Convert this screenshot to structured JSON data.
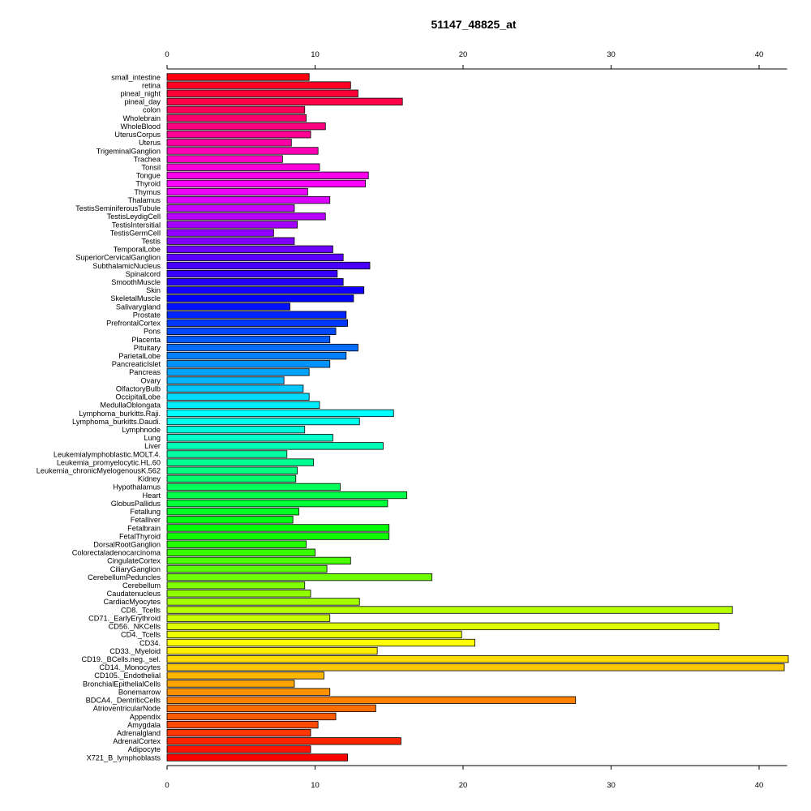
{
  "chart_data": {
    "type": "bar",
    "orientation": "horizontal",
    "title": "51147_48825_at",
    "xlabel": "",
    "ylabel": "",
    "xlim": [
      0,
      42
    ],
    "xticks": [
      0,
      10,
      20,
      30,
      40
    ],
    "axes": [
      "top",
      "bottom"
    ],
    "grid": false,
    "legend": "none",
    "color_scheme": "rainbow",
    "categories": [
      "small_intestine",
      "retina",
      "pineal_night",
      "pineal_day",
      "colon",
      "Wholebrain",
      "WholeBlood",
      "UterusCorpus",
      "Uterus",
      "TrigeminalGanglion",
      "Trachea",
      "Tonsil",
      "Tongue",
      "Thyroid",
      "Thymus",
      "Thalamus",
      "TestisSeminiferousTubule",
      "TestisLeydigCell",
      "TestisIntersitial",
      "TestisGermCell",
      "Testis",
      "TemporalLobe",
      "SuperiorCervicalGanglion",
      "SubthalamicNucleus",
      "Spinalcord",
      "SmoothMuscle",
      "Skin",
      "SkeletalMuscle",
      "Salivarygland",
      "Prostate",
      "PrefrontalCortex",
      "Pons",
      "Placenta",
      "Pituitary",
      "ParietalLobe",
      "PancreaticIslet",
      "Pancreas",
      "Ovary",
      "OlfactoryBulb",
      "OccipitalLobe",
      "MedullaOblongata",
      "Lymphoma_burkitts.Raji.",
      "Lymphoma_burkitts.Daudi.",
      "Lymphnode",
      "Lung",
      "Liver",
      "Leukemialymphoblastic.MOLT.4.",
      "Leukemia_promyelocytic.HL.60",
      "Leukemia_chronicMyelogenousK.562",
      "Kidney",
      "Hypothalamus",
      "Heart",
      "GlobusPallidus",
      "Fetallung",
      "Fetalliver",
      "Fetalbrain",
      "FetalThyroid",
      "DorsalRootGanglion",
      "Colorectaladenocarcinoma",
      "CingulateCortex",
      "CiliaryGanglion",
      "CerebellumPeduncles",
      "Cerebellum",
      "Caudatenucleus",
      "CardiacMyocytes",
      "CD8._Tcells",
      "CD71._EarlyErythroid",
      "CD56._NKCells",
      "CD4._Tcells",
      "CD34.",
      "CD33._Myeloid",
      "CD19._BCells.neg._sel.",
      "CD14._Monocytes",
      "CD105._Endothelial",
      "BronchialEpithelialCells",
      "Bonemarrow",
      "BDCA4._DentriticCells",
      "AtrioventricularNode",
      "Appendix",
      "Amygdala",
      "Adrenalgland",
      "AdrenalCortex",
      "Adipocyte",
      "X721_B_lymphoblasts"
    ],
    "values": [
      9.6,
      12.4,
      12.9,
      15.9,
      9.3,
      9.4,
      10.7,
      9.7,
      8.4,
      10.2,
      7.8,
      10.3,
      13.6,
      13.4,
      9.5,
      11.0,
      8.6,
      10.7,
      8.8,
      7.2,
      8.6,
      11.2,
      11.9,
      13.7,
      11.5,
      11.9,
      13.3,
      12.6,
      8.3,
      12.1,
      12.2,
      11.4,
      11.0,
      12.9,
      12.1,
      11.0,
      9.6,
      7.9,
      9.2,
      9.6,
      10.3,
      15.3,
      13.0,
      9.3,
      11.2,
      14.6,
      8.1,
      9.9,
      8.8,
      8.7,
      11.7,
      16.2,
      14.9,
      8.9,
      8.5,
      15.0,
      15.0,
      9.4,
      10.0,
      12.4,
      10.8,
      17.9,
      9.3,
      9.7,
      13.0,
      38.2,
      11.0,
      37.3,
      19.9,
      20.8,
      14.2,
      42.0,
      41.7,
      10.6,
      8.6,
      11.0,
      27.6,
      14.1,
      11.4,
      10.2,
      9.7,
      15.8,
      9.7,
      12.2
    ]
  }
}
